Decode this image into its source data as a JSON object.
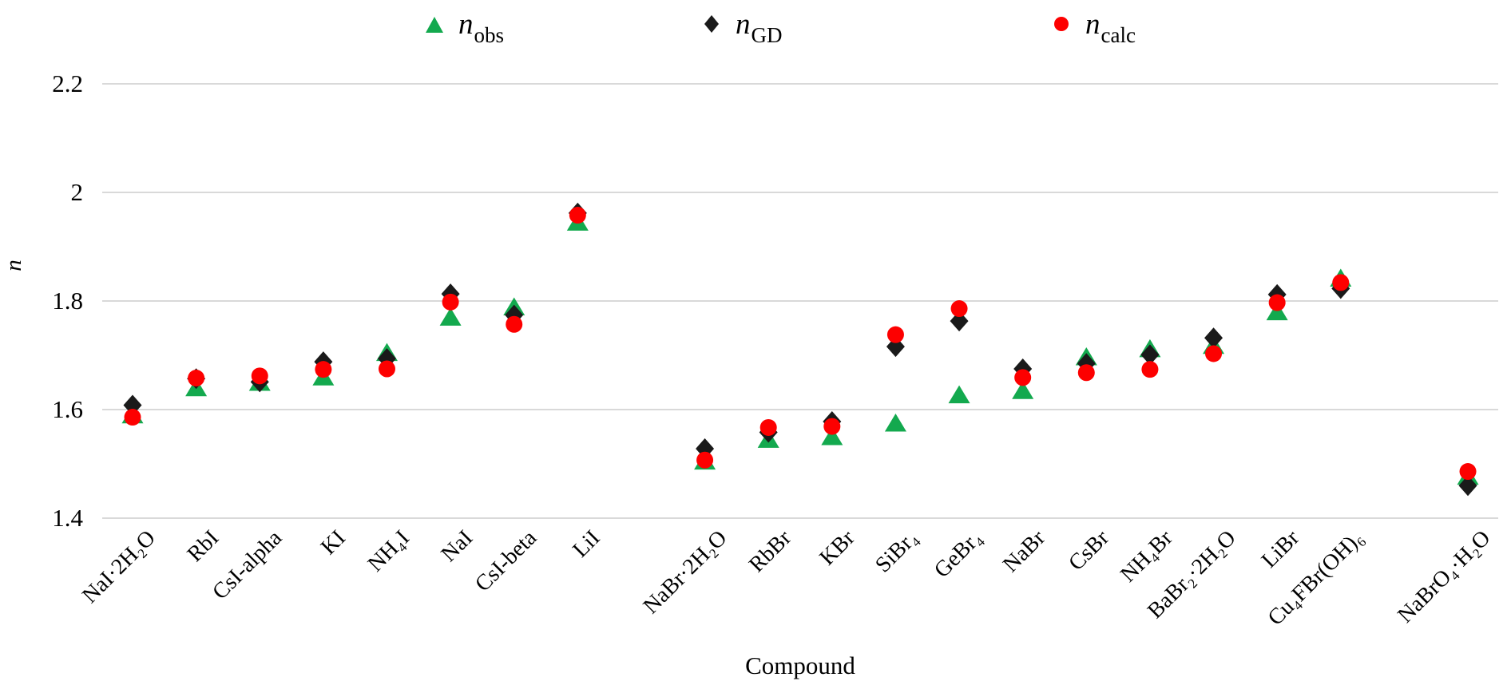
{
  "figure": {
    "background": "#FFFFFF"
  },
  "legend": {
    "items": [
      {
        "name": "n_obs",
        "symbol": "triangle",
        "color": "#13A94E",
        "main": "n",
        "sub": "obs"
      },
      {
        "name": "n_GD",
        "symbol": "diamond",
        "color": "#1A1A1A",
        "main": "n",
        "sub": "GD"
      },
      {
        "name": "n_calc",
        "symbol": "circle",
        "color": "#FD0000",
        "main": "n",
        "sub": "calc"
      }
    ]
  },
  "axes": {
    "y_title": "n",
    "x_title": "Compound"
  },
  "chart_data": {
    "type": "scatter",
    "title": "",
    "xlabel": "Compound",
    "ylabel": "n",
    "ylim": [
      1.4,
      2.2
    ],
    "grid": true,
    "grid_color": "#D9D9D9",
    "legend_position": "top",
    "y_ticks": [
      {
        "label": "2.2",
        "value": 2.2
      },
      {
        "label": "2",
        "value": 2.0
      },
      {
        "label": "1.8",
        "value": 1.8
      },
      {
        "label": "1.6",
        "value": 1.6
      },
      {
        "label": "1.4",
        "value": 1.4
      }
    ],
    "categories": [
      "NaI·2H₂O",
      "RbI",
      "CsI-alpha",
      "KI",
      "NH₄I",
      "NaI",
      "CsI-beta",
      "LiI",
      "NaBr·2H₂O",
      "RbBr",
      "KBr",
      "SiBr₄",
      "GeBr₄",
      "NaBr",
      "CsBr",
      "NH₄Br",
      "BaBr₂·2H₂O",
      "LiBr",
      "Cu₄FBr(OH)₆",
      "NaBrO₄·H₂O"
    ],
    "slots": [
      0,
      1,
      2,
      3,
      4,
      5,
      6,
      7,
      9,
      10,
      11,
      12,
      13,
      14,
      15,
      16,
      17,
      18,
      19,
      21
    ],
    "total_slots": 22,
    "series": [
      {
        "name": "n_obs",
        "marker": "triangle",
        "color": "#13A94E",
        "values": [
          1.59,
          1.64,
          1.65,
          1.66,
          1.705,
          1.77,
          1.789,
          1.945,
          1.505,
          1.545,
          1.55,
          1.575,
          1.627,
          1.635,
          1.697,
          1.712,
          1.718,
          1.78,
          1.842,
          1.477
        ]
      },
      {
        "name": "n_GD",
        "marker": "diamond",
        "color": "#1A1A1A",
        "values": [
          1.608,
          1.657,
          1.651,
          1.688,
          1.694,
          1.813,
          1.774,
          1.962,
          1.528,
          1.558,
          1.578,
          1.716,
          1.763,
          1.675,
          1.685,
          1.701,
          1.732,
          1.812,
          1.823,
          1.46
        ]
      },
      {
        "name": "n_calc",
        "marker": "circle",
        "color": "#FD0000",
        "values": [
          1.586,
          1.658,
          1.662,
          1.674,
          1.675,
          1.798,
          1.757,
          1.958,
          1.507,
          1.567,
          1.569,
          1.738,
          1.786,
          1.659,
          1.668,
          1.674,
          1.703,
          1.797,
          1.834,
          1.486
        ]
      }
    ]
  }
}
